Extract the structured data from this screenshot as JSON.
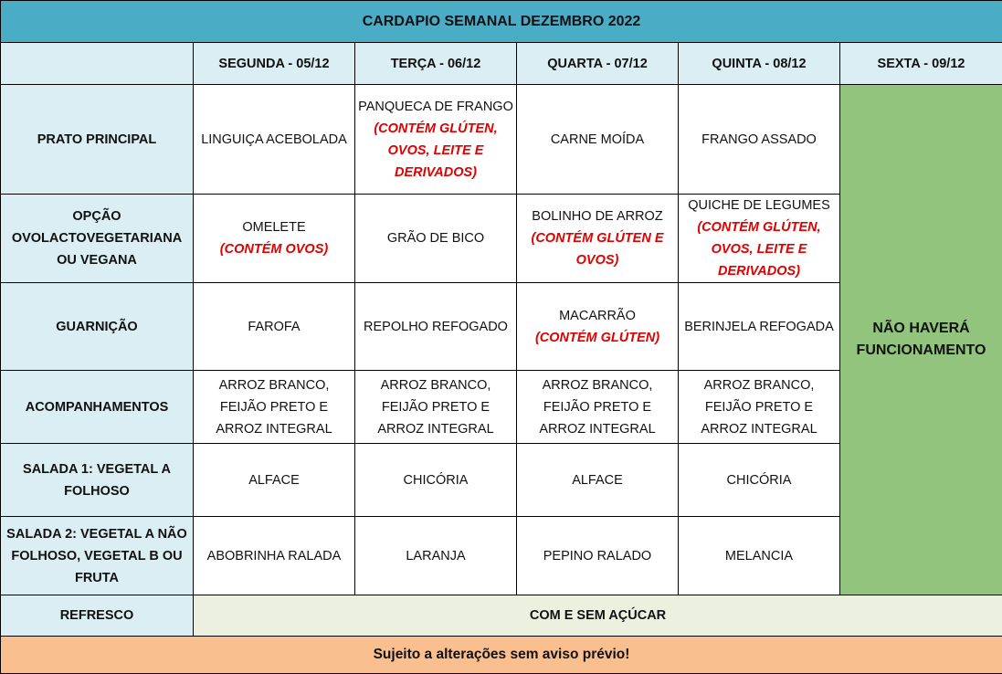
{
  "title": "CARDAPIO SEMANAL DEZEMBRO 2022",
  "days": [
    "SEGUNDA - 05/12",
    "TERÇA - 06/12",
    "QUARTA - 07/12",
    "QUINTA - 08/12",
    "SEXTA - 09/12"
  ],
  "rows": [
    {
      "label": "PRATO PRINCIPAL",
      "cells": [
        {
          "text": "LINGUIÇA ACEBOLADA"
        },
        {
          "text": "PANQUECA DE FRANGO",
          "note": "(CONTÉM GLÚTEN, OVOS, LEITE E DERIVADOS)"
        },
        {
          "text": "CARNE MOÍDA"
        },
        {
          "text": "FRANGO ASSADO"
        }
      ]
    },
    {
      "label": "OPÇÃO OVOLACTOVEGETARIANA OU VEGANA",
      "cells": [
        {
          "text": "OMELETE",
          "note": "(CONTÉM OVOS)"
        },
        {
          "text": "GRÃO DE BICO"
        },
        {
          "text": "BOLINHO DE ARROZ",
          "note": "(CONTÉM GLÚTEN E OVOS)"
        },
        {
          "text": "QUICHE DE LEGUMES",
          "note": "(CONTÉM GLÚTEN, OVOS, LEITE E DERIVADOS)"
        }
      ]
    },
    {
      "label": "GUARNIÇÃO",
      "cells": [
        {
          "text": "FAROFA"
        },
        {
          "text": "REPOLHO REFOGADO"
        },
        {
          "text": "MACARRÃO",
          "note": "(CONTÉM GLÚTEN)"
        },
        {
          "text": "BERINJELA REFOGADA"
        }
      ]
    },
    {
      "label": "ACOMPANHAMENTOS",
      "cells": [
        {
          "text": "ARROZ BRANCO, FEIJÃO PRETO E ARROZ INTEGRAL"
        },
        {
          "text": "ARROZ BRANCO, FEIJÃO PRETO E ARROZ INTEGRAL"
        },
        {
          "text": "ARROZ BRANCO, FEIJÃO PRETO E ARROZ INTEGRAL"
        },
        {
          "text": "ARROZ BRANCO, FEIJÃO PRETO E ARROZ INTEGRAL"
        }
      ]
    },
    {
      "label": "SALADA 1: VEGETAL A FOLHOSO",
      "cells": [
        {
          "text": "ALFACE"
        },
        {
          "text": "CHICÓRIA"
        },
        {
          "text": "ALFACE"
        },
        {
          "text": "CHICÓRIA"
        }
      ]
    },
    {
      "label": "SALADA 2: VEGETAL A NÃO FOLHOSO,   VEGETAL B OU FRUTA",
      "cells": [
        {
          "text": "ABOBRINHA RALADA"
        },
        {
          "text": "LARANJA"
        },
        {
          "text": "PEPINO RALADO"
        },
        {
          "text": "MELANCIA"
        }
      ]
    }
  ],
  "closed_text": "NÃO HAVERÁ FUNCIONAMENTO",
  "refresco": {
    "label": "REFRESCO",
    "value": "COM E SEM AÇÚCAR"
  },
  "footer": "Sujeito a alterações sem aviso prévio!",
  "colors": {
    "title": "#4BACC6",
    "label_bg": "#DAEEF3",
    "closed_bg": "#93C47D",
    "refresco_bg": "#EBF1DE",
    "footer_bg": "#FABF8F",
    "allergen": "#E00000"
  }
}
